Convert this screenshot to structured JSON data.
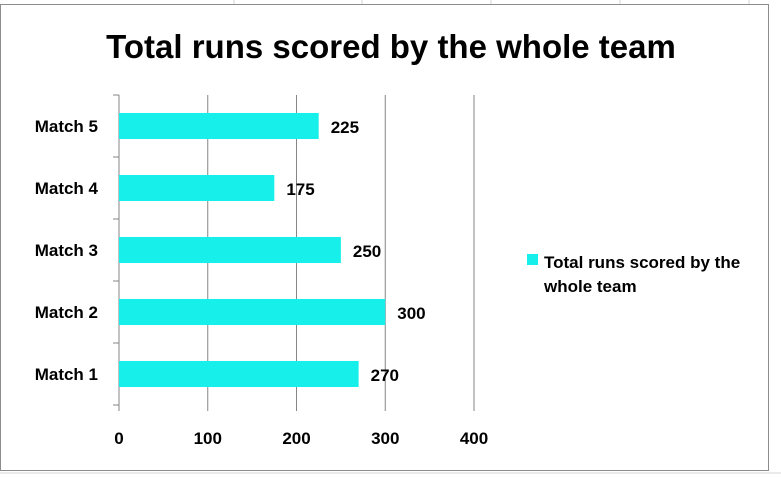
{
  "chart_data": {
    "type": "bar",
    "orientation": "horizontal",
    "title": "Total runs scored by the whole team",
    "categories": [
      "Match 1",
      "Match 2",
      "Match 3",
      "Match 4",
      "Match 5"
    ],
    "series": [
      {
        "name": "Total runs scored by the whole team",
        "values": [
          270,
          300,
          250,
          175,
          225
        ],
        "color": "#17efea"
      }
    ],
    "data_labels": [
      "270",
      "300",
      "250",
      "175",
      "225"
    ],
    "xlim": [
      0,
      400
    ],
    "x_ticks": [
      0,
      100,
      200,
      300,
      400
    ],
    "grid": true,
    "legend_position": "right"
  }
}
